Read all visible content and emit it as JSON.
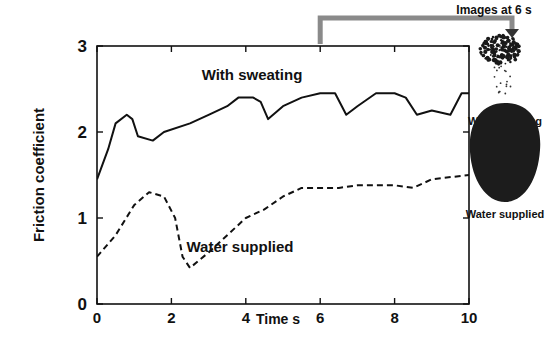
{
  "chart_data": {
    "type": "line",
    "x_label": "Time s",
    "y_label": "Friction coefficient",
    "xlim": [
      0,
      10
    ],
    "xticks": [
      0,
      2,
      4,
      6,
      8,
      10
    ],
    "ylim": [
      0,
      3
    ],
    "yticks": [
      0,
      1,
      2,
      3
    ],
    "grid": false,
    "series": [
      {
        "name": "With sweating",
        "color": "#111111",
        "line_style": "solid",
        "x": [
          0,
          0.3,
          0.5,
          0.8,
          0.95,
          1.1,
          1.5,
          1.8,
          2.5,
          3,
          3.5,
          3.8,
          4.2,
          4.4,
          4.6,
          5,
          5.5,
          6,
          6.4,
          6.7,
          7,
          7.5,
          8,
          8.3,
          8.6,
          9,
          9.5,
          9.8,
          10
        ],
        "values": [
          1.45,
          1.8,
          2.1,
          2.2,
          2.15,
          1.95,
          1.9,
          2.0,
          2.1,
          2.2,
          2.3,
          2.4,
          2.4,
          2.35,
          2.15,
          2.3,
          2.4,
          2.45,
          2.45,
          2.2,
          2.3,
          2.45,
          2.45,
          2.4,
          2.2,
          2.25,
          2.2,
          2.45,
          2.45
        ]
      },
      {
        "name": "Water supplied",
        "color": "#111111",
        "line_style": "dashed",
        "x": [
          0,
          0.5,
          1,
          1.4,
          1.8,
          2.1,
          2.3,
          2.5,
          3,
          3.5,
          4,
          4.5,
          5,
          5.5,
          6,
          6.5,
          7,
          8,
          8.5,
          9,
          10
        ],
        "values": [
          0.55,
          0.8,
          1.15,
          1.3,
          1.25,
          1.0,
          0.55,
          0.42,
          0.6,
          0.8,
          1.0,
          1.1,
          1.25,
          1.35,
          1.35,
          1.35,
          1.38,
          1.38,
          1.35,
          1.45,
          1.5
        ]
      }
    ]
  },
  "images_panel": {
    "title": "Images at 6 s",
    "time": 6,
    "captions": [
      "With sweating",
      "Water supplied"
    ]
  }
}
